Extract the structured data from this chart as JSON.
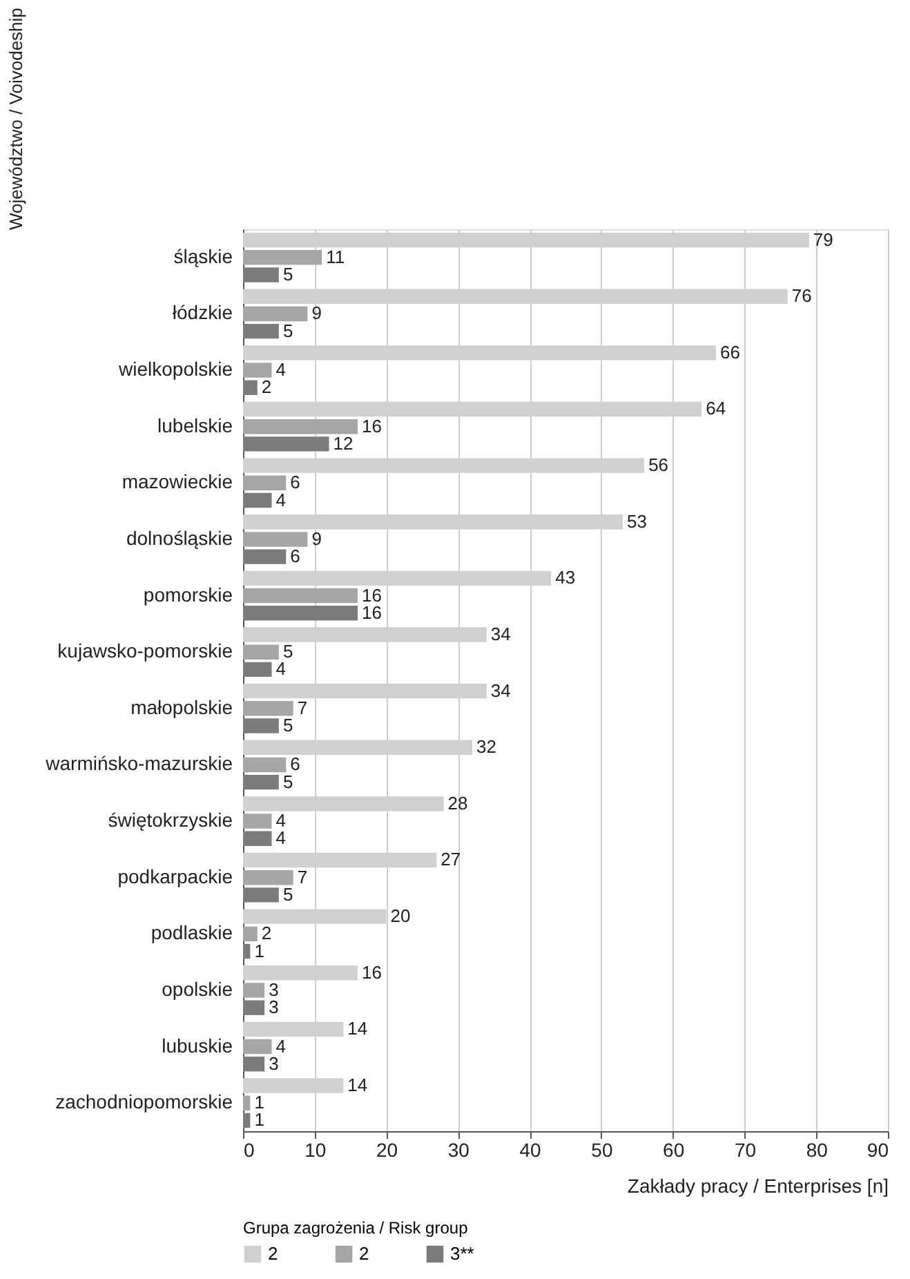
{
  "chart_data": {
    "type": "bar",
    "orientation": "horizontal",
    "xlabel": "Zakłady pracy / Enterprises [n]",
    "ylabel": "Województwo / Voivodeship",
    "legend_title": "Grupa zagrożenia / Risk group",
    "categories": [
      "śląskie",
      "łódzkie",
      "wielkopolskie",
      "lubelskie",
      "mazowieckie",
      "dolnośląskie",
      "pomorskie",
      "kujawsko-pomorskie",
      "małopolskie",
      "warmińsko-mazurskie",
      "świętokrzyskie",
      "podkarpackie",
      "podlaskie",
      "opolskie",
      "lubuskie",
      "zachodniopomorskie"
    ],
    "series": [
      {
        "name": "2",
        "color": "#d0d0d0",
        "values": [
          79,
          76,
          66,
          64,
          56,
          53,
          43,
          34,
          34,
          32,
          28,
          27,
          20,
          16,
          14,
          14
        ]
      },
      {
        "name": "2",
        "color": "#a6a6a6",
        "values": [
          11,
          9,
          4,
          16,
          6,
          9,
          16,
          5,
          7,
          6,
          4,
          7,
          2,
          3,
          4,
          1
        ]
      },
      {
        "name": "3**",
        "color": "#7b7b7b",
        "values": [
          5,
          5,
          2,
          12,
          4,
          6,
          16,
          4,
          5,
          5,
          4,
          5,
          1,
          3,
          3,
          1
        ]
      }
    ],
    "xlim": [
      0,
      90
    ],
    "xticks": [
      0,
      10,
      20,
      30,
      40,
      50,
      60,
      70,
      80,
      90
    ],
    "grid": "x",
    "legend": "bottom left",
    "data_labels": true
  }
}
